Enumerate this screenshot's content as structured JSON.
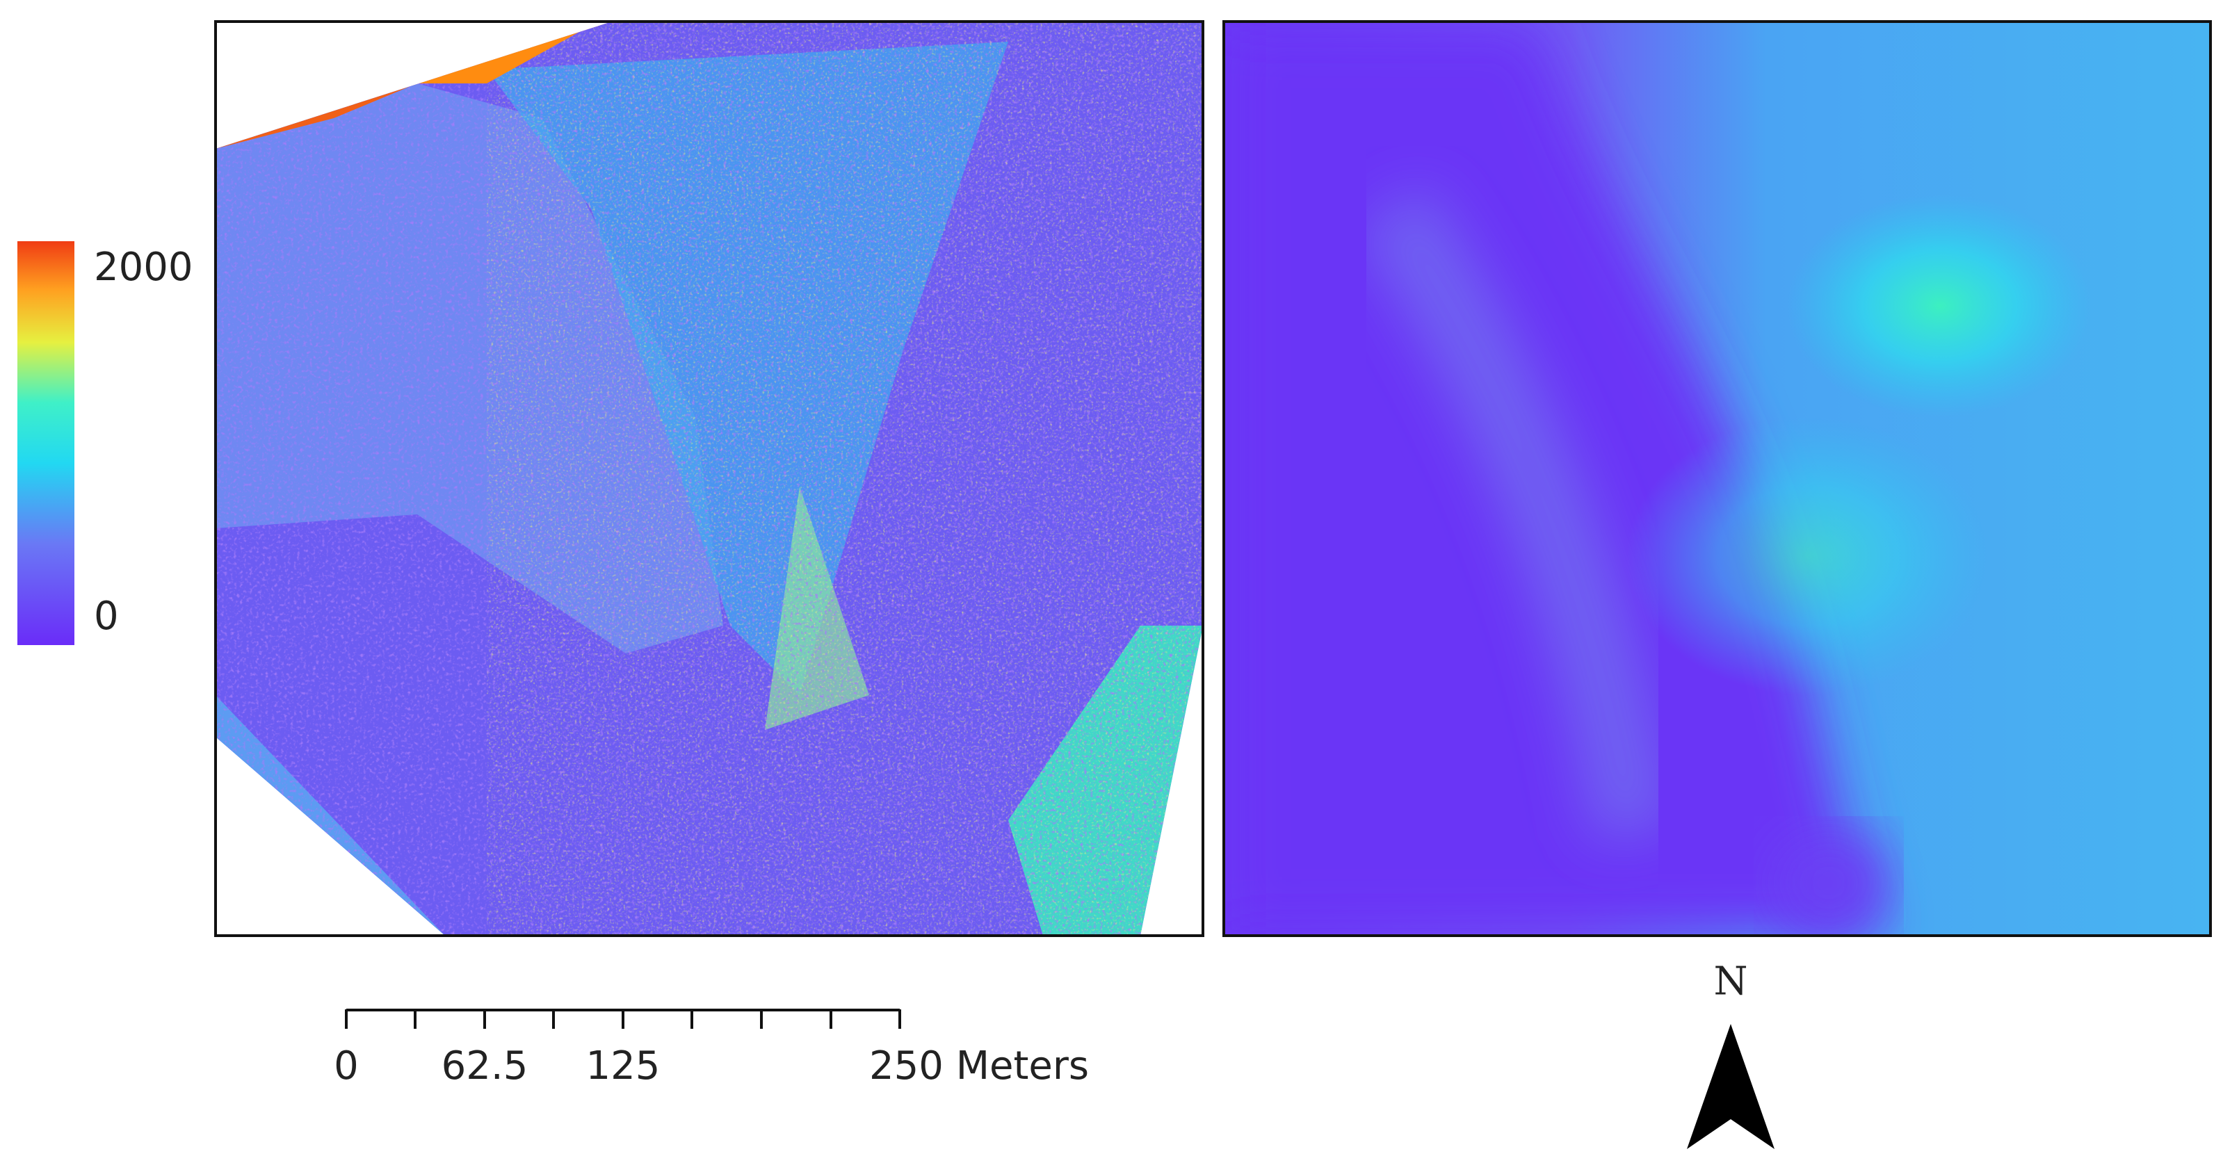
{
  "legend": {
    "max": 2000,
    "min": 0
  },
  "scale_bar": {
    "xlim": [
      0,
      250
    ],
    "ticks": [
      0,
      62.5,
      125,
      {
        "value": 250,
        "label": "250 Meters"
      }
    ]
  },
  "north_arrow": {
    "label": "N"
  }
}
